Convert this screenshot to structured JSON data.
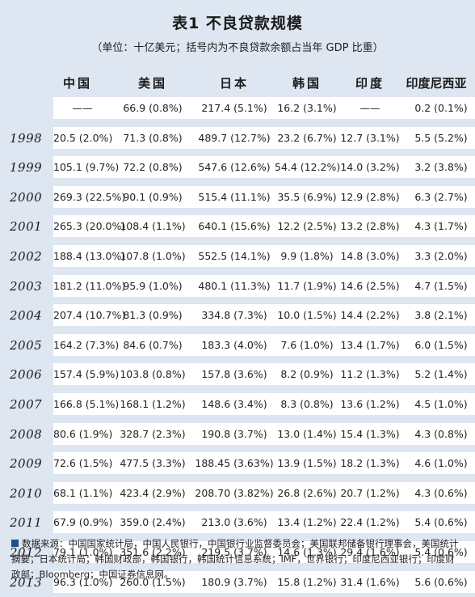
{
  "title": "表1 不良贷款规模",
  "subtitle": "（单位：十亿美元；括号内为不良贷款余额占当年 GDP 比重）",
  "columns": [
    "中国",
    "美国",
    "日本",
    "韩国",
    "印度",
    "印度尼西亚"
  ],
  "rows": [
    {
      "year": "",
      "cells": [
        "——",
        "66.9 (0.8%)",
        "217.4 (5.1%)",
        "16.2 (3.1%)",
        "——",
        "0.2 (0.1%)"
      ]
    },
    {
      "year": "1998",
      "cells": [
        "20.5 (2.0%)",
        "71.3 (0.8%)",
        "489.7 (12.7%)",
        "23.2 (6.7%)",
        "12.7 (3.1%)",
        "5.5 (5.2%)"
      ]
    },
    {
      "year": "1999",
      "cells": [
        "105.1 (9.7%)",
        "72.2 (0.8%)",
        "547.6 (12.6%)",
        "54.4 (12.2%)",
        "14.0 (3.2%)",
        "3.2 (3.8%)"
      ]
    },
    {
      "year": "2000",
      "cells": [
        "269.3 (22.5%)",
        "90.1 (0.9%)",
        "515.4 (11.1%)",
        "35.5 (6.9%)",
        "12.9 (2.8%)",
        "6.3 (2.7%)"
      ]
    },
    {
      "year": "2001",
      "cells": [
        "265.3 (20.0%)",
        "108.4 (1.1%)",
        "640.1 (15.6%)",
        "12.2 (2.5%)",
        "13.2 (2.8%)",
        "4.3 (1.7%)"
      ]
    },
    {
      "year": "2002",
      "cells": [
        "188.4 (13.0%)",
        "107.8 (1.0%)",
        "552.5 (14.1%)",
        "9.9 (1.8%)",
        "14.8 (3.0%)",
        "3.3 (2.0%)"
      ]
    },
    {
      "year": "2003",
      "cells": [
        "181.2 (11.0%)",
        "95.9 (1.0%)",
        "480.1 (11.3%)",
        "11.7 (1.9%)",
        "14.6 (2.5%)",
        "4.7 (1.5%)"
      ]
    },
    {
      "year": "2004",
      "cells": [
        "207.4 (10.7%)",
        "81.3 (0.9%)",
        "334.8 (7.3%)",
        "10.0 (1.5%)",
        "14.4 (2.2%)",
        "3.8 (2.1%)"
      ]
    },
    {
      "year": "2005",
      "cells": [
        "164.2 (7.3%)",
        "84.6 (0.7%)",
        "183.3 (4.0%)",
        "7.6 (1.0%)",
        "13.4 (1.7%)",
        "6.0 (1.5%)"
      ]
    },
    {
      "year": "2006",
      "cells": [
        "157.4 (5.9%)",
        "103.8 (0.8%)",
        "157.8 (3.6%)",
        "8.2 (0.9%)",
        "11.2 (1.3%)",
        "5.2 (1.4%)"
      ]
    },
    {
      "year": "2007",
      "cells": [
        "166.8 (5.1%)",
        "168.1 (1.2%)",
        "148.6 (3.4%)",
        "8.3 (0.8%)",
        "13.6 (1.2%)",
        "4.5 (1.0%)"
      ]
    },
    {
      "year": "2008",
      "cells": [
        "80.6 (1.9%)",
        "328.7 (2.3%)",
        "190.8 (3.7%)",
        "13.0 (1.4%)",
        "15.4 (1.3%)",
        "4.3 (0.8%)"
      ]
    },
    {
      "year": "2009",
      "cells": [
        "72.6 (1.5%)",
        "477.5 (3.3%)",
        "188.45 (3.63%)",
        "13.9 (1.5%)",
        "18.2 (1.3%)",
        "4.6 (1.0%)"
      ]
    },
    {
      "year": "2010",
      "cells": [
        "68.1 (1.1%)",
        "423.4 (2.9%)",
        "208.70 (3.82%)",
        "26.8 (2.6%)",
        "20.7 (1.2%)",
        "4.3 (0.6%)"
      ]
    },
    {
      "year": "2011",
      "cells": [
        "67.9 (0.9%)",
        "359.0 (2.4%)",
        "213.0 (3.6%)",
        "13.4 (1.2%)",
        "22.4 (1.2%)",
        "5.4 (0.6%)"
      ]
    },
    {
      "year": "2012",
      "cells": [
        "79.1 (1.0%)",
        "351.6 (2.2%)",
        "219.5 (3.7%)",
        "14.6 (1.3%)",
        "29.4 (1.6%)",
        "5.4 (0.6%)"
      ]
    },
    {
      "year": "2013",
      "cells": [
        "96.3 (1.0%)",
        "260.0 (1.5%)",
        "180.9 (3.7%)",
        "15.8 (1.2%)",
        "31.4 (1.6%)",
        "5.6 (0.6%)"
      ]
    }
  ],
  "footer": "数据来源：中国国家统计局，中国人民银行，中国银行业监督委员会；美国联邦储备银行理事会，美国统计摘要；日本统计局；韩国财政部，韩国银行，韩国统计信息系统；IMF，世界银行；印度尼西亚银行；印度财政部；Bloomberg；中国证券信息网。",
  "colors": {
    "background": "#dde6f1",
    "row_band": "#ffffff",
    "footer_marker": "#1f4e8c"
  }
}
